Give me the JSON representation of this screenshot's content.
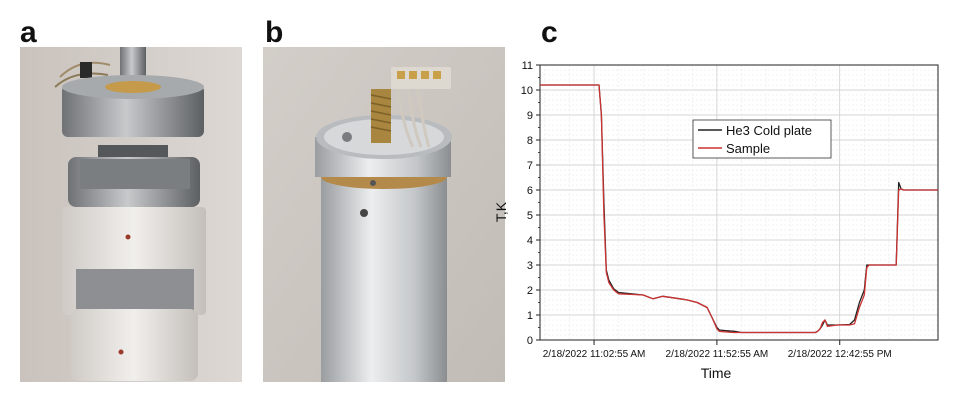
{
  "panels": {
    "a": "a",
    "b": "b",
    "c": "c"
  },
  "chart_data": {
    "type": "line",
    "title": "",
    "xlabel": "Time",
    "ylabel": "T,K",
    "ylim": [
      0,
      11
    ],
    "yticks": [
      0,
      1,
      2,
      3,
      4,
      5,
      6,
      7,
      8,
      9,
      10,
      11
    ],
    "xtick_labels": [
      "2/18/2022 11:02:55 AM",
      "2/18/2022 11:52:55 AM",
      "2/18/2022 12:42:55 PM"
    ],
    "xlim_minutes_from_first_tick": [
      -22,
      140
    ],
    "xticks_minutes_from_first_tick": [
      0,
      50,
      100
    ],
    "grid": true,
    "legend_position": "upper-middle",
    "series": [
      {
        "name": "He3 Cold plate",
        "color": "#222222",
        "x": [
          -22,
          2,
          3,
          4,
          5,
          6,
          8,
          10,
          20,
          24,
          28,
          35,
          38,
          42,
          46,
          48,
          50,
          51,
          53,
          57,
          60,
          90,
          91,
          92,
          93,
          94,
          95,
          99,
          104,
          106,
          108,
          110,
          111,
          112,
          114,
          118,
          123,
          124,
          125,
          126,
          140
        ],
        "y": [
          10.2,
          10.2,
          9.0,
          5.5,
          2.8,
          2.4,
          2.05,
          1.9,
          1.8,
          1.65,
          1.75,
          1.65,
          1.6,
          1.5,
          1.3,
          0.9,
          0.5,
          0.4,
          0.38,
          0.35,
          0.3,
          0.3,
          0.35,
          0.45,
          0.6,
          0.8,
          0.6,
          0.6,
          0.62,
          0.8,
          1.5,
          2.0,
          3.0,
          3.0,
          3.0,
          3.0,
          3.0,
          6.3,
          6.05,
          6.0,
          6.0
        ]
      },
      {
        "name": "Sample",
        "color": "#cc3333",
        "x": [
          -22,
          2,
          3,
          4,
          5,
          6,
          8,
          10,
          20,
          24,
          28,
          35,
          38,
          42,
          46,
          48,
          50,
          51,
          53,
          57,
          60,
          90,
          91,
          92,
          93,
          94,
          95,
          99,
          104,
          106,
          108,
          110,
          111,
          112,
          114,
          118,
          123,
          124,
          125,
          126,
          140
        ],
        "y": [
          10.2,
          10.2,
          9.0,
          5.0,
          2.7,
          2.3,
          2.0,
          1.85,
          1.8,
          1.65,
          1.75,
          1.65,
          1.6,
          1.5,
          1.3,
          0.9,
          0.45,
          0.35,
          0.33,
          0.3,
          0.3,
          0.3,
          0.35,
          0.45,
          0.7,
          0.8,
          0.55,
          0.6,
          0.6,
          0.65,
          1.3,
          1.8,
          2.9,
          3.0,
          3.0,
          3.0,
          3.0,
          6.0,
          6.05,
          6.0,
          6.0
        ]
      }
    ]
  }
}
